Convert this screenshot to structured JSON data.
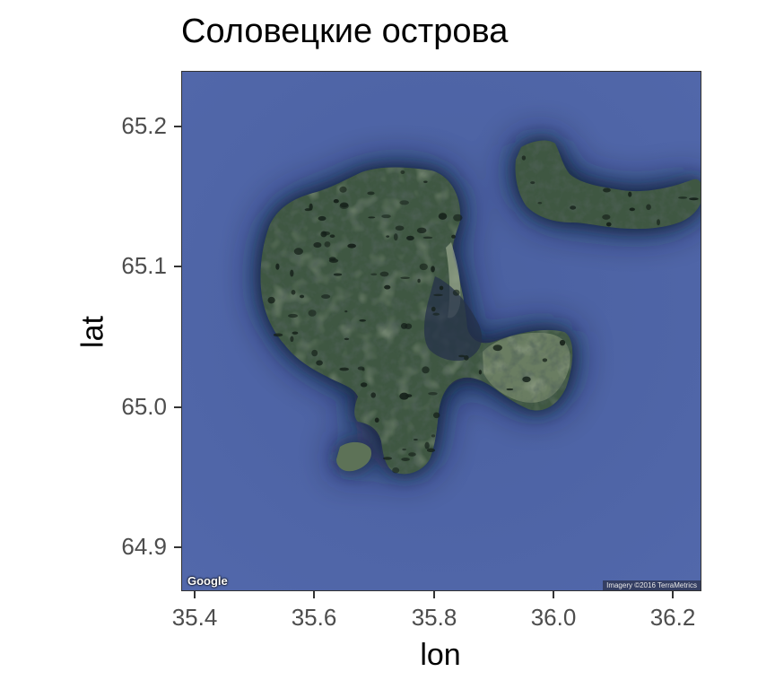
{
  "title": "Соловецкие острова",
  "map": {
    "type": "satellite",
    "provider_logo": "Google",
    "attribution": "Imagery ©2016 TerraMetrics",
    "colors": {
      "sea": "#4d64a6",
      "sea_deep": "#16203a",
      "land": "#3d5440",
      "land_light": "#6f8366",
      "lake": "#14201c",
      "frame": "#333333"
    }
  },
  "axes": {
    "xlabel": "lon",
    "ylabel": "lat",
    "x_ticks": [
      "35.4",
      "35.6",
      "35.8",
      "36.0",
      "36.2"
    ],
    "y_ticks": [
      "65.2",
      "65.1",
      "65.0",
      "64.9"
    ],
    "x_range": [
      35.375,
      36.245
    ],
    "y_range": [
      64.874,
      65.244
    ]
  }
}
